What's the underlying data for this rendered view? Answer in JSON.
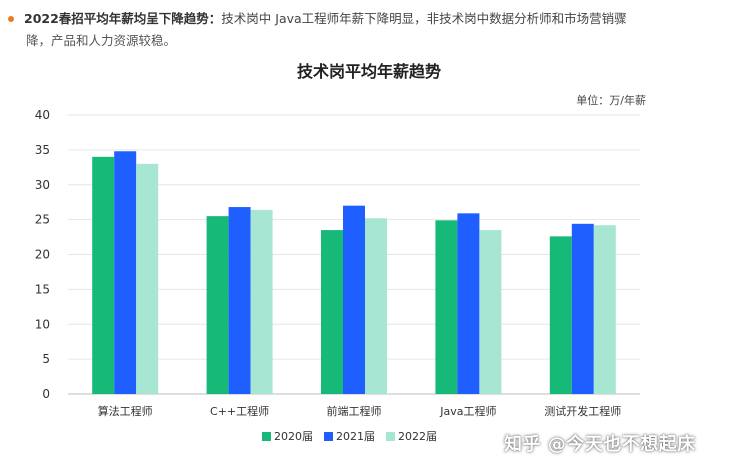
{
  "intro": {
    "heading": "2022春招平均年薪均呈下降趋势：",
    "text_line1": "技术岗中 Java工程师年薪下降明显，非技术岗中数据分析师和市场营销骤",
    "text_line2": "降，产品和人力资源较稳。"
  },
  "watermark": {
    "credit": "知乎 @今天也不想起床"
  },
  "colors": {
    "bullet": "#f07a1c",
    "series_2020": "#17b978",
    "series_2021": "#1f5fff",
    "series_2022": "#a8e6d4",
    "grid": "#e6e6e6"
  },
  "chart_data": {
    "type": "bar",
    "title": "技术岗平均年薪趋势",
    "unit": "单位：万/年薪",
    "xlabel": "",
    "ylabel": "",
    "ylim": [
      0,
      40
    ],
    "yticks": [
      0,
      5,
      10,
      15,
      20,
      25,
      30,
      35,
      40
    ],
    "grid": true,
    "legend_position": "bottom",
    "categories": [
      "算法工程师",
      "C++工程师",
      "前端工程师",
      "Java工程师",
      "测试开发工程师"
    ],
    "series": [
      {
        "name": "2020届",
        "color": "#17b978",
        "values": [
          34.0,
          25.5,
          23.5,
          24.9,
          22.6
        ]
      },
      {
        "name": "2021届",
        "color": "#1f5fff",
        "values": [
          34.8,
          26.8,
          27.0,
          25.9,
          24.4
        ]
      },
      {
        "name": "2022届",
        "color": "#a8e6d4",
        "values": [
          33.0,
          26.4,
          25.2,
          23.5,
          24.2
        ]
      }
    ]
  }
}
